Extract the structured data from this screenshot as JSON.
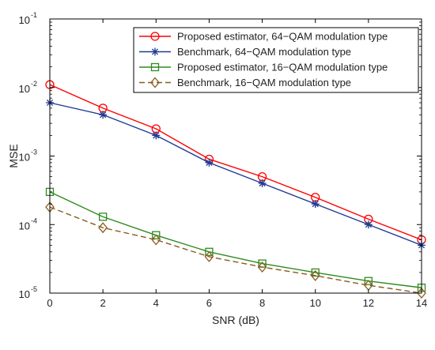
{
  "chart_data": {
    "type": "line",
    "title": "",
    "xlabel": "SNR (dB)",
    "ylabel": "MSE",
    "yscale": "log",
    "xlim": [
      0,
      14
    ],
    "ylim": [
      1e-05,
      0.1
    ],
    "x": [
      0,
      2,
      4,
      6,
      8,
      10,
      12,
      14
    ],
    "x_ticks": [
      "0",
      "2",
      "4",
      "6",
      "8",
      "10",
      "12",
      "14"
    ],
    "y_ticks": [
      {
        "base": "10",
        "exp": "-5"
      },
      {
        "base": "10",
        "exp": "-4"
      },
      {
        "base": "10",
        "exp": "-3"
      },
      {
        "base": "10",
        "exp": "-2"
      },
      {
        "base": "10",
        "exp": "-1"
      }
    ],
    "grid": false,
    "legend_position": "top-right",
    "series": [
      {
        "name": "Proposed estimator, 64−QAM modulation type",
        "values": [
          0.011,
          0.005,
          0.0025,
          0.0009,
          0.0005,
          0.00025,
          0.00012,
          6e-05
        ],
        "color": "#ff0000",
        "marker": "circle",
        "line": "solid"
      },
      {
        "name": "Benchmark, 64−QAM modulation type",
        "values": [
          0.006,
          0.004,
          0.002,
          0.0008,
          0.0004,
          0.0002,
          0.0001,
          5e-05
        ],
        "color": "#1f3a93",
        "marker": "star",
        "line": "solid"
      },
      {
        "name": "Proposed estimator, 16−QAM modulation type",
        "values": [
          0.0003,
          0.00013,
          7e-05,
          4e-05,
          2.7e-05,
          2e-05,
          1.5e-05,
          1.2e-05
        ],
        "color": "#2e8b1f",
        "marker": "square",
        "line": "solid"
      },
      {
        "name": "Benchmark, 16−QAM modulation type",
        "values": [
          0.00018,
          9e-05,
          6e-05,
          3.4e-05,
          2.4e-05,
          1.8e-05,
          1.3e-05,
          1e-05
        ],
        "color": "#8b5a1f",
        "marker": "diamond",
        "line": "dashed"
      }
    ]
  }
}
